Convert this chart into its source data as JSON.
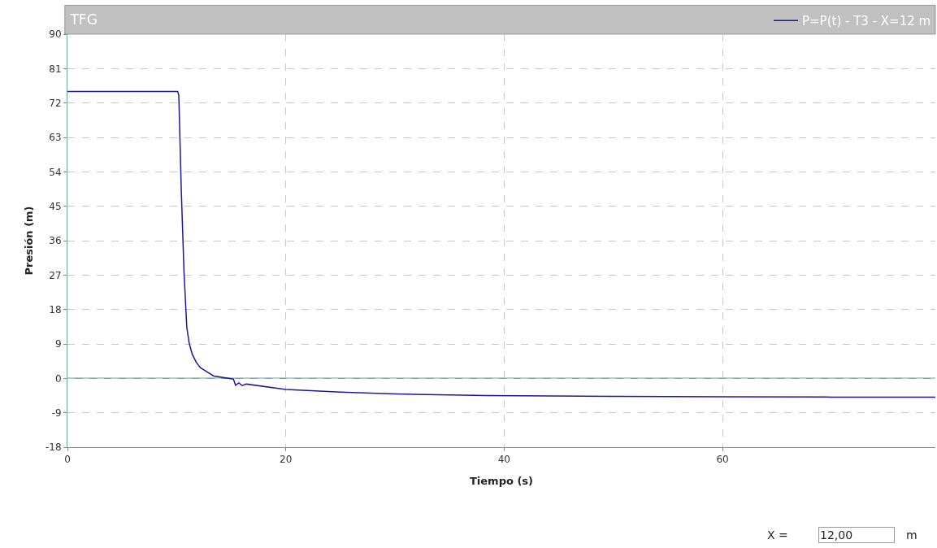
{
  "chart_data": {
    "type": "line",
    "title": "TFG",
    "xlabel": "Tiempo (s)",
    "ylabel": "Presión (m)",
    "series": [
      {
        "name": "P=P(t) - T3 - X=12 m",
        "color": "#1a1a99",
        "x": [
          0,
          10.1,
          10.2,
          10.43,
          10.68,
          10.93,
          11.15,
          11.43,
          11.8,
          12.17,
          13.4,
          15.2,
          15.4,
          15.7,
          16.0,
          16.4,
          20,
          25,
          30,
          38.4,
          50,
          60,
          70,
          79.5
        ],
        "values": [
          75,
          75,
          74,
          48.9,
          27.6,
          13.4,
          9.2,
          6.3,
          4.2,
          2.8,
          0.6,
          -0.2,
          -1.8,
          -1.2,
          -1.9,
          -1.5,
          -2.9,
          -3.6,
          -4.1,
          -4.5,
          -4.7,
          -4.8,
          -4.9,
          -4.9
        ]
      }
    ],
    "xlim": [
      0,
      79.5
    ],
    "xticks": [
      0,
      20,
      40,
      60
    ],
    "ylim": [
      -18,
      90
    ],
    "yticks": [
      -18,
      -9,
      0,
      9,
      18,
      27,
      36,
      45,
      54,
      63,
      72,
      81,
      90
    ],
    "ref_lines": [
      {
        "axis": "y",
        "value": 0,
        "color": "#6aa6a0"
      }
    ],
    "grid": true,
    "legend": "top right",
    "marker": "none",
    "line_style": "solid",
    "annotations": [
      "X =",
      "12,00",
      "m"
    ]
  }
}
